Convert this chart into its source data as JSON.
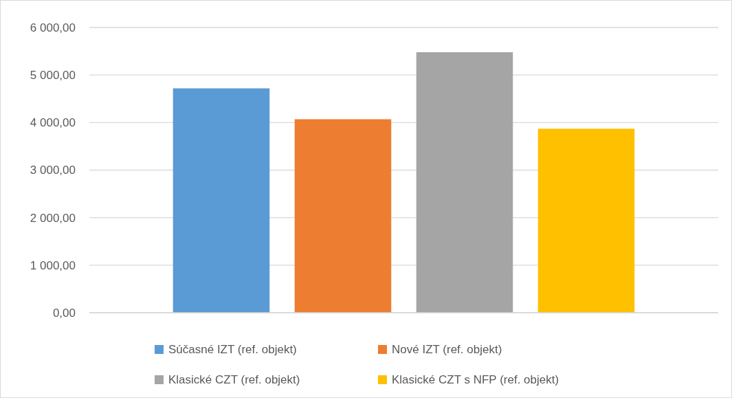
{
  "chart_data": {
    "type": "bar",
    "categories": [
      null
    ],
    "series": [
      {
        "name": "Súčasné IZT (ref. objekt)",
        "color": "#5b9bd5",
        "values": [
          4720
        ]
      },
      {
        "name": "Nové IZT (ref. objekt)",
        "color": "#ed7d31",
        "values": [
          4070
        ]
      },
      {
        "name": "Klasické CZT (ref. objekt)",
        "color": "#a5a5a5",
        "values": [
          5480
        ]
      },
      {
        "name": "Klasické CZT s NFP (ref. objekt)",
        "color": "#ffc000",
        "values": [
          3870
        ]
      }
    ],
    "ylim": [
      0,
      6000
    ],
    "yticks": [
      {
        "value": 0,
        "label": "0,00"
      },
      {
        "value": 1000,
        "label": "1 000,00"
      },
      {
        "value": 2000,
        "label": "2 000,00"
      },
      {
        "value": 3000,
        "label": "3 000,00"
      },
      {
        "value": 4000,
        "label": "4 000,00"
      },
      {
        "value": 5000,
        "label": "5 000,00"
      },
      {
        "value": 6000,
        "label": "6 000,00"
      }
    ],
    "grid": "y",
    "legend": "bottom"
  }
}
